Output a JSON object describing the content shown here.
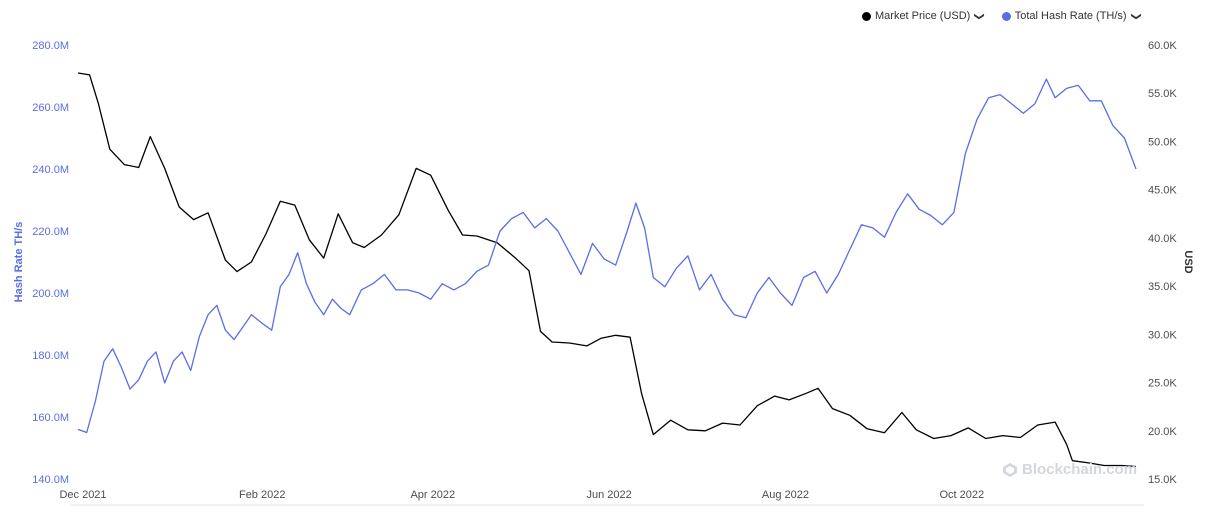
{
  "legend": [
    {
      "label": "Market Price (USD)",
      "color": "#000000"
    },
    {
      "label": "Total Hash Rate (TH/s)",
      "color": "#5a6ee6"
    }
  ],
  "watermark": "Blockchain.com",
  "chart_data": {
    "type": "line",
    "xlabel": "",
    "x_ticks": [
      "Dec 2021",
      "Feb 2022",
      "Apr 2022",
      "Jun 2022",
      "Aug 2022",
      "Oct 2022"
    ],
    "x_tick_dates": [
      "2021-12-01",
      "2022-02-01",
      "2022-04-01",
      "2022-06-01",
      "2022-08-01",
      "2022-10-01"
    ],
    "xlim": [
      "2021-12-01",
      "2022-12-02"
    ],
    "y_left": {
      "label": "Hash Rate TH/s",
      "ticks": [
        "140.0M",
        "160.0M",
        "180.0M",
        "200.0M",
        "220.0M",
        "240.0M",
        "260.0M",
        "280.0M"
      ],
      "ylim": [
        140000000,
        280000000
      ]
    },
    "y_right": {
      "label": "USD",
      "ticks": [
        "15.0K",
        "20.0K",
        "25.0K",
        "30.0K",
        "35.0K",
        "40.0K",
        "45.0K",
        "50.0K",
        "55.0K",
        "60.0K"
      ],
      "ylim": [
        15000,
        60000
      ]
    },
    "grid": false,
    "legend_position": "top-right",
    "series": [
      {
        "name": "Market Price (USD)",
        "axis": "right",
        "color": "#000000",
        "points": [
          [
            "2021-12-01",
            57100
          ],
          [
            "2021-12-05",
            56900
          ],
          [
            "2021-12-08",
            54000
          ],
          [
            "2021-12-12",
            49200
          ],
          [
            "2021-12-17",
            47600
          ],
          [
            "2021-12-22",
            47300
          ],
          [
            "2021-12-26",
            50500
          ],
          [
            "2021-12-31",
            47200
          ],
          [
            "2022-01-05",
            43200
          ],
          [
            "2022-01-10",
            41900
          ],
          [
            "2022-01-15",
            42600
          ],
          [
            "2022-01-21",
            37700
          ],
          [
            "2022-01-25",
            36500
          ],
          [
            "2022-01-30",
            37500
          ],
          [
            "2022-02-04",
            40400
          ],
          [
            "2022-02-09",
            43800
          ],
          [
            "2022-02-14",
            43400
          ],
          [
            "2022-02-19",
            39800
          ],
          [
            "2022-02-24",
            37900
          ],
          [
            "2022-03-01",
            42500
          ],
          [
            "2022-03-06",
            39500
          ],
          [
            "2022-03-10",
            39000
          ],
          [
            "2022-03-16",
            40300
          ],
          [
            "2022-03-22",
            42400
          ],
          [
            "2022-03-28",
            47200
          ],
          [
            "2022-04-02",
            46500
          ],
          [
            "2022-04-08",
            42900
          ],
          [
            "2022-04-13",
            40300
          ],
          [
            "2022-04-18",
            40200
          ],
          [
            "2022-04-25",
            39500
          ],
          [
            "2022-05-01",
            38000
          ],
          [
            "2022-05-06",
            36600
          ],
          [
            "2022-05-10",
            30300
          ],
          [
            "2022-05-14",
            29200
          ],
          [
            "2022-05-20",
            29100
          ],
          [
            "2022-05-26",
            28800
          ],
          [
            "2022-05-31",
            29600
          ],
          [
            "2022-06-05",
            29900
          ],
          [
            "2022-06-10",
            29700
          ],
          [
            "2022-06-14",
            23800
          ],
          [
            "2022-06-18",
            19600
          ],
          [
            "2022-06-24",
            21100
          ],
          [
            "2022-06-30",
            20100
          ],
          [
            "2022-07-06",
            20000
          ],
          [
            "2022-07-12",
            20800
          ],
          [
            "2022-07-18",
            20600
          ],
          [
            "2022-07-24",
            22600
          ],
          [
            "2022-07-30",
            23600
          ],
          [
            "2022-08-04",
            23200
          ],
          [
            "2022-08-10",
            23900
          ],
          [
            "2022-08-14",
            24400
          ],
          [
            "2022-08-19",
            22300
          ],
          [
            "2022-08-25",
            21600
          ],
          [
            "2022-08-31",
            20200
          ],
          [
            "2022-09-06",
            19800
          ],
          [
            "2022-09-12",
            21900
          ],
          [
            "2022-09-17",
            20100
          ],
          [
            "2022-09-23",
            19200
          ],
          [
            "2022-09-29",
            19500
          ],
          [
            "2022-10-05",
            20300
          ],
          [
            "2022-10-11",
            19200
          ],
          [
            "2022-10-17",
            19500
          ],
          [
            "2022-10-23",
            19300
          ],
          [
            "2022-10-29",
            20600
          ],
          [
            "2022-11-04",
            20900
          ],
          [
            "2022-11-08",
            18600
          ],
          [
            "2022-11-10",
            16900
          ],
          [
            "2022-11-15",
            16700
          ],
          [
            "2022-11-21",
            16400
          ],
          [
            "2022-11-27",
            16400
          ],
          [
            "2022-12-02",
            16300
          ]
        ]
      },
      {
        "name": "Total Hash Rate (TH/s)",
        "axis": "left",
        "color": "#5a6ee6",
        "points": [
          [
            "2021-12-01",
            156000000
          ],
          [
            "2021-12-04",
            155000000
          ],
          [
            "2021-12-07",
            165000000
          ],
          [
            "2021-12-10",
            178000000
          ],
          [
            "2021-12-13",
            182000000
          ],
          [
            "2021-12-16",
            176000000
          ],
          [
            "2021-12-19",
            169000000
          ],
          [
            "2021-12-22",
            172000000
          ],
          [
            "2021-12-25",
            178000000
          ],
          [
            "2021-12-28",
            181000000
          ],
          [
            "2021-12-31",
            171000000
          ],
          [
            "2022-01-03",
            178000000
          ],
          [
            "2022-01-06",
            181000000
          ],
          [
            "2022-01-09",
            175000000
          ],
          [
            "2022-01-12",
            186000000
          ],
          [
            "2022-01-15",
            193000000
          ],
          [
            "2022-01-18",
            196000000
          ],
          [
            "2022-01-21",
            188000000
          ],
          [
            "2022-01-24",
            185000000
          ],
          [
            "2022-01-27",
            189000000
          ],
          [
            "2022-01-30",
            193000000
          ],
          [
            "2022-02-03",
            190000000
          ],
          [
            "2022-02-06",
            188000000
          ],
          [
            "2022-02-09",
            202000000
          ],
          [
            "2022-02-12",
            206000000
          ],
          [
            "2022-02-15",
            213000000
          ],
          [
            "2022-02-18",
            203000000
          ],
          [
            "2022-02-21",
            197000000
          ],
          [
            "2022-02-24",
            193000000
          ],
          [
            "2022-02-27",
            198000000
          ],
          [
            "2022-03-02",
            195000000
          ],
          [
            "2022-03-05",
            193000000
          ],
          [
            "2022-03-09",
            201000000
          ],
          [
            "2022-03-13",
            203000000
          ],
          [
            "2022-03-17",
            206000000
          ],
          [
            "2022-03-21",
            201000000
          ],
          [
            "2022-03-25",
            201000000
          ],
          [
            "2022-03-29",
            200000000
          ],
          [
            "2022-04-02",
            198000000
          ],
          [
            "2022-04-06",
            203000000
          ],
          [
            "2022-04-10",
            201000000
          ],
          [
            "2022-04-14",
            203000000
          ],
          [
            "2022-04-18",
            207000000
          ],
          [
            "2022-04-22",
            209000000
          ],
          [
            "2022-04-26",
            220000000
          ],
          [
            "2022-04-30",
            224000000
          ],
          [
            "2022-05-04",
            226000000
          ],
          [
            "2022-05-08",
            221000000
          ],
          [
            "2022-05-12",
            224000000
          ],
          [
            "2022-05-16",
            220000000
          ],
          [
            "2022-05-20",
            213000000
          ],
          [
            "2022-05-24",
            206000000
          ],
          [
            "2022-05-28",
            216000000
          ],
          [
            "2022-06-01",
            211000000
          ],
          [
            "2022-06-05",
            209000000
          ],
          [
            "2022-06-09",
            220000000
          ],
          [
            "2022-06-12",
            229000000
          ],
          [
            "2022-06-15",
            221000000
          ],
          [
            "2022-06-18",
            205000000
          ],
          [
            "2022-06-22",
            202000000
          ],
          [
            "2022-06-26",
            208000000
          ],
          [
            "2022-06-30",
            212000000
          ],
          [
            "2022-07-04",
            201000000
          ],
          [
            "2022-07-08",
            206000000
          ],
          [
            "2022-07-12",
            198000000
          ],
          [
            "2022-07-16",
            193000000
          ],
          [
            "2022-07-20",
            192000000
          ],
          [
            "2022-07-24",
            200000000
          ],
          [
            "2022-07-28",
            205000000
          ],
          [
            "2022-08-01",
            200000000
          ],
          [
            "2022-08-05",
            196000000
          ],
          [
            "2022-08-09",
            205000000
          ],
          [
            "2022-08-13",
            207000000
          ],
          [
            "2022-08-17",
            200000000
          ],
          [
            "2022-08-21",
            206000000
          ],
          [
            "2022-08-25",
            214000000
          ],
          [
            "2022-08-29",
            222000000
          ],
          [
            "2022-09-02",
            221000000
          ],
          [
            "2022-09-06",
            218000000
          ],
          [
            "2022-09-10",
            226000000
          ],
          [
            "2022-09-14",
            232000000
          ],
          [
            "2022-09-18",
            227000000
          ],
          [
            "2022-09-22",
            225000000
          ],
          [
            "2022-09-26",
            222000000
          ],
          [
            "2022-09-30",
            226000000
          ],
          [
            "2022-10-04",
            245000000
          ],
          [
            "2022-10-08",
            256000000
          ],
          [
            "2022-10-12",
            263000000
          ],
          [
            "2022-10-16",
            264000000
          ],
          [
            "2022-10-20",
            261000000
          ],
          [
            "2022-10-24",
            258000000
          ],
          [
            "2022-10-28",
            261000000
          ],
          [
            "2022-11-01",
            269000000
          ],
          [
            "2022-11-04",
            263000000
          ],
          [
            "2022-11-08",
            266000000
          ],
          [
            "2022-11-12",
            267000000
          ],
          [
            "2022-11-16",
            262000000
          ],
          [
            "2022-11-20",
            262000000
          ],
          [
            "2022-11-24",
            254000000
          ],
          [
            "2022-11-28",
            250000000
          ],
          [
            "2022-12-02",
            240000000
          ]
        ]
      }
    ]
  }
}
